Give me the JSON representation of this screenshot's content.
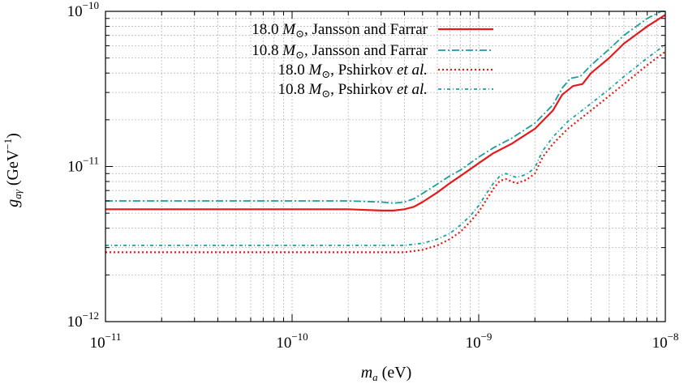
{
  "chart_data": {
    "type": "line",
    "xscale": "log",
    "yscale": "log",
    "xlim": [
      1e-11,
      1e-08
    ],
    "ylim": [
      1e-12,
      1e-10
    ],
    "grid": true,
    "legend_position": "top-right",
    "xlabel": {
      "main": "m",
      "sub": "a",
      "rest": " (eV)"
    },
    "ylabel": {
      "main": "g",
      "sub": "aγ",
      "rest1": " (GeV",
      "sup": "−1",
      "rest2": ")"
    },
    "x_ticks": [
      {
        "value": 1e-11,
        "base": "10",
        "exp": "−11"
      },
      {
        "value": 1e-10,
        "base": "10",
        "exp": "−10"
      },
      {
        "value": 1e-09,
        "base": "10",
        "exp": "−9"
      },
      {
        "value": 1e-08,
        "base": "10",
        "exp": "−8"
      }
    ],
    "y_ticks": [
      {
        "value": 1e-12,
        "base": "10",
        "exp": "−12"
      },
      {
        "value": 1e-11,
        "base": "10",
        "exp": "−11"
      },
      {
        "value": 1e-10,
        "base": "10",
        "exp": "−10"
      }
    ],
    "series": [
      {
        "name": "18.0 M⊙, Jansson and Farrar",
        "name_parts": {
          "pre": "18.0 ",
          "mass": "M",
          "sun": "⊙",
          "post": ", Jansson and Farrar",
          "italic": ""
        },
        "color": "#e41a1c",
        "dash": "",
        "width": 2.2,
        "x": [
          1e-11,
          1e-10,
          2e-10,
          3e-10,
          3.5e-10,
          4e-10,
          4.5e-10,
          5e-10,
          6e-10,
          7e-10,
          8e-10,
          1e-09,
          1.2e-09,
          1.5e-09,
          2e-09,
          2.5e-09,
          2.8e-09,
          3.2e-09,
          3.6e-09,
          4e-09,
          5e-09,
          6e-09,
          8e-09,
          1e-08
        ],
        "y": [
          5.3e-12,
          5.3e-12,
          5.3e-12,
          5.2e-12,
          5.2e-12,
          5.3e-12,
          5.5e-12,
          5.9e-12,
          6.8e-12,
          7.8e-12,
          8.7e-12,
          1.05e-11,
          1.22e-11,
          1.4e-11,
          1.75e-11,
          2.3e-11,
          2.9e-11,
          3.3e-11,
          3.4e-11,
          4e-11,
          5e-11,
          6.2e-11,
          8e-11,
          9.5e-11
        ]
      },
      {
        "name": "10.8 M⊙, Jansson and Farrar",
        "name_parts": {
          "pre": "10.8 ",
          "mass": "M",
          "sun": "⊙",
          "post": ", Jansson and Farrar",
          "italic": ""
        },
        "color": "#1a9e9e",
        "dash": "9,3,2,3",
        "width": 1.8,
        "x": [
          1e-11,
          1e-10,
          2e-10,
          3e-10,
          3.5e-10,
          4e-10,
          4.5e-10,
          5e-10,
          6e-10,
          7e-10,
          8e-10,
          1e-09,
          1.2e-09,
          1.5e-09,
          2e-09,
          2.5e-09,
          2.8e-09,
          3.1e-09,
          3.5e-09,
          4e-09,
          5e-09,
          6e-09,
          8e-09,
          9.5e-09,
          1e-08
        ],
        "y": [
          6e-12,
          6e-12,
          6e-12,
          5.9e-12,
          5.8e-12,
          5.9e-12,
          6.2e-12,
          6.7e-12,
          7.7e-12,
          8.7e-12,
          9.5e-12,
          1.15e-11,
          1.32e-11,
          1.52e-11,
          1.9e-11,
          2.5e-11,
          3.2e-11,
          3.7e-11,
          3.8e-11,
          4.5e-11,
          5.7e-11,
          7e-11,
          9e-11,
          1e-10,
          1e-10
        ]
      },
      {
        "name": "18.0 M⊙, Pshirkov et al.",
        "name_parts": {
          "pre": "18.0 ",
          "mass": "M",
          "sun": "⊙",
          "post": ", Pshirkov ",
          "italic": "et al."
        },
        "color": "#e41a1c",
        "dash": "2,3",
        "width": 2.2,
        "x": [
          1e-11,
          1e-10,
          2e-10,
          3e-10,
          4e-10,
          5e-10,
          6e-10,
          7e-10,
          8e-10,
          9e-10,
          1e-09,
          1.1e-09,
          1.2e-09,
          1.3e-09,
          1.4e-09,
          1.5e-09,
          1.6e-09,
          1.8e-09,
          2e-09,
          2.1e-09,
          2.2e-09,
          2.5e-09,
          3e-09,
          4e-09,
          5e-09,
          6e-09,
          8e-09,
          1e-08
        ],
        "y": [
          2.8e-12,
          2.8e-12,
          2.8e-12,
          2.8e-12,
          2.8e-12,
          2.9e-12,
          3.1e-12,
          3.4e-12,
          3.8e-12,
          4.4e-12,
          5.1e-12,
          6.1e-12,
          7.2e-12,
          8.1e-12,
          8.3e-12,
          8e-12,
          7.8e-12,
          8.2e-12,
          9e-12,
          1.02e-11,
          1.15e-11,
          1.4e-11,
          1.75e-11,
          2.3e-11,
          2.85e-11,
          3.4e-11,
          4.5e-11,
          5.5e-11
        ]
      },
      {
        "name": "10.8 M⊙, Pshirkov et al.",
        "name_parts": {
          "pre": "10.8 ",
          "mass": "M",
          "sun": "⊙",
          "post": ", Pshirkov ",
          "italic": "et al."
        },
        "color": "#1a9e9e",
        "dash": "4,3,1,3",
        "width": 1.8,
        "x": [
          1e-11,
          1e-10,
          2e-10,
          3e-10,
          4e-10,
          5e-10,
          6e-10,
          7e-10,
          8e-10,
          9e-10,
          1e-09,
          1.1e-09,
          1.2e-09,
          1.3e-09,
          1.4e-09,
          1.5e-09,
          1.6e-09,
          1.8e-09,
          2e-09,
          2.1e-09,
          2.2e-09,
          2.5e-09,
          3e-09,
          4e-09,
          5e-09,
          6e-09,
          8e-09,
          1e-08
        ],
        "y": [
          3.1e-12,
          3.1e-12,
          3.1e-12,
          3.1e-12,
          3.1e-12,
          3.2e-12,
          3.4e-12,
          3.7e-12,
          4.2e-12,
          4.8e-12,
          5.6e-12,
          6.7e-12,
          7.8e-12,
          8.7e-12,
          9e-12,
          8.7e-12,
          8.5e-12,
          8.9e-12,
          9.8e-12,
          1.12e-11,
          1.26e-11,
          1.55e-11,
          1.95e-11,
          2.55e-11,
          3.15e-11,
          3.8e-11,
          5e-11,
          6.1e-11
        ]
      }
    ]
  }
}
